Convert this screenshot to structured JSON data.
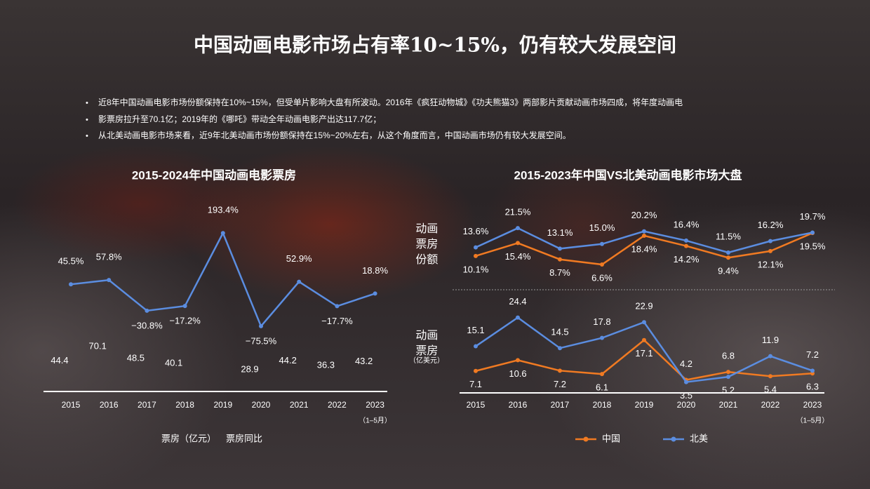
{
  "title": "中国动画电影市场占有率10~15%，仍有较大发展空间",
  "bullets": [
    "近8年中国动画电影市场份额保持在10%~15%，但受单片影响大盘有所波动。2016年《疯狂动物城》《功夫熊猫3》两部影片贡献动画市场四成，将年度动画电",
    "影票房拉升至70.1亿；2019年的《哪吒》带动全年动画电影产出达117.7亿；",
    "从北美动画电影市场来看，近9年北美动画市场份额保持在15%~20%左右，从这个角度而言，中国动画市场仍有较大发展空间。"
  ],
  "chart_data": [
    {
      "type": "line",
      "title": "2015-2024年中国动画电影票房",
      "categories": [
        "2015",
        "2016",
        "2017",
        "2018",
        "2019",
        "2020",
        "2021",
        "2022",
        "2023"
      ],
      "last_category_note": "（1–5月）",
      "series": [
        {
          "name": "票房（亿元）",
          "values": [
            44.4,
            70.1,
            48.5,
            40.1,
            null,
            28.9,
            44.2,
            36.3,
            43.2
          ],
          "ylim": [
            0,
            100
          ]
        },
        {
          "name": "票房同比",
          "color": "#5b8de0",
          "values": [
            45.5,
            57.8,
            -30.8,
            -17.2,
            193.4,
            -75.5,
            52.9,
            -17.7,
            18.8
          ],
          "value_labels": [
            "45.5%",
            "57.8%",
            "−30.8%",
            "−17.2%",
            "193.4%",
            "−75.5%",
            "52.9%",
            "−17.7%",
            "18.8%"
          ],
          "ylim": [
            -100,
            200
          ]
        }
      ]
    },
    {
      "type": "line",
      "title": "2015-2023年中国VS北美动画电影市场大盘",
      "categories": [
        "2015",
        "2016",
        "2017",
        "2018",
        "2019",
        "2020",
        "2021",
        "2022",
        "2023"
      ],
      "last_category_note": "（1–5月）",
      "panels": [
        {
          "label": "动画票房份额",
          "ylim": [
            0,
            25
          ]
        },
        {
          "label": "动画票房",
          "unit": "（亿美元）",
          "ylim": [
            0,
            30
          ]
        }
      ],
      "series": [
        {
          "name": "中国",
          "color": "#f07a22",
          "share": [
            10.1,
            15.4,
            8.7,
            6.6,
            18.4,
            14.2,
            9.4,
            12.1,
            19.5
          ],
          "share_labels": [
            "10.1%",
            "15.4%",
            "8.7%",
            "6.6%",
            "18.4%",
            "14.2%",
            "9.4%",
            "12.1%",
            "19.5%"
          ],
          "box_office": [
            7.1,
            10.6,
            7.2,
            6.1,
            17.1,
            4.2,
            6.8,
            5.4,
            6.3
          ]
        },
        {
          "name": "北美",
          "color": "#5b8de0",
          "share": [
            13.6,
            21.5,
            13.1,
            15.0,
            20.2,
            16.4,
            11.5,
            16.2,
            19.7
          ],
          "share_labels": [
            "13.6%",
            "21.5%",
            "13.1%",
            "15.0%",
            "20.2%",
            "16.4%",
            "11.5%",
            "16.2%",
            "19.7%"
          ],
          "box_office": [
            15.1,
            24.4,
            14.5,
            17.8,
            22.9,
            3.5,
            5.2,
            11.9,
            7.2
          ]
        }
      ]
    }
  ]
}
